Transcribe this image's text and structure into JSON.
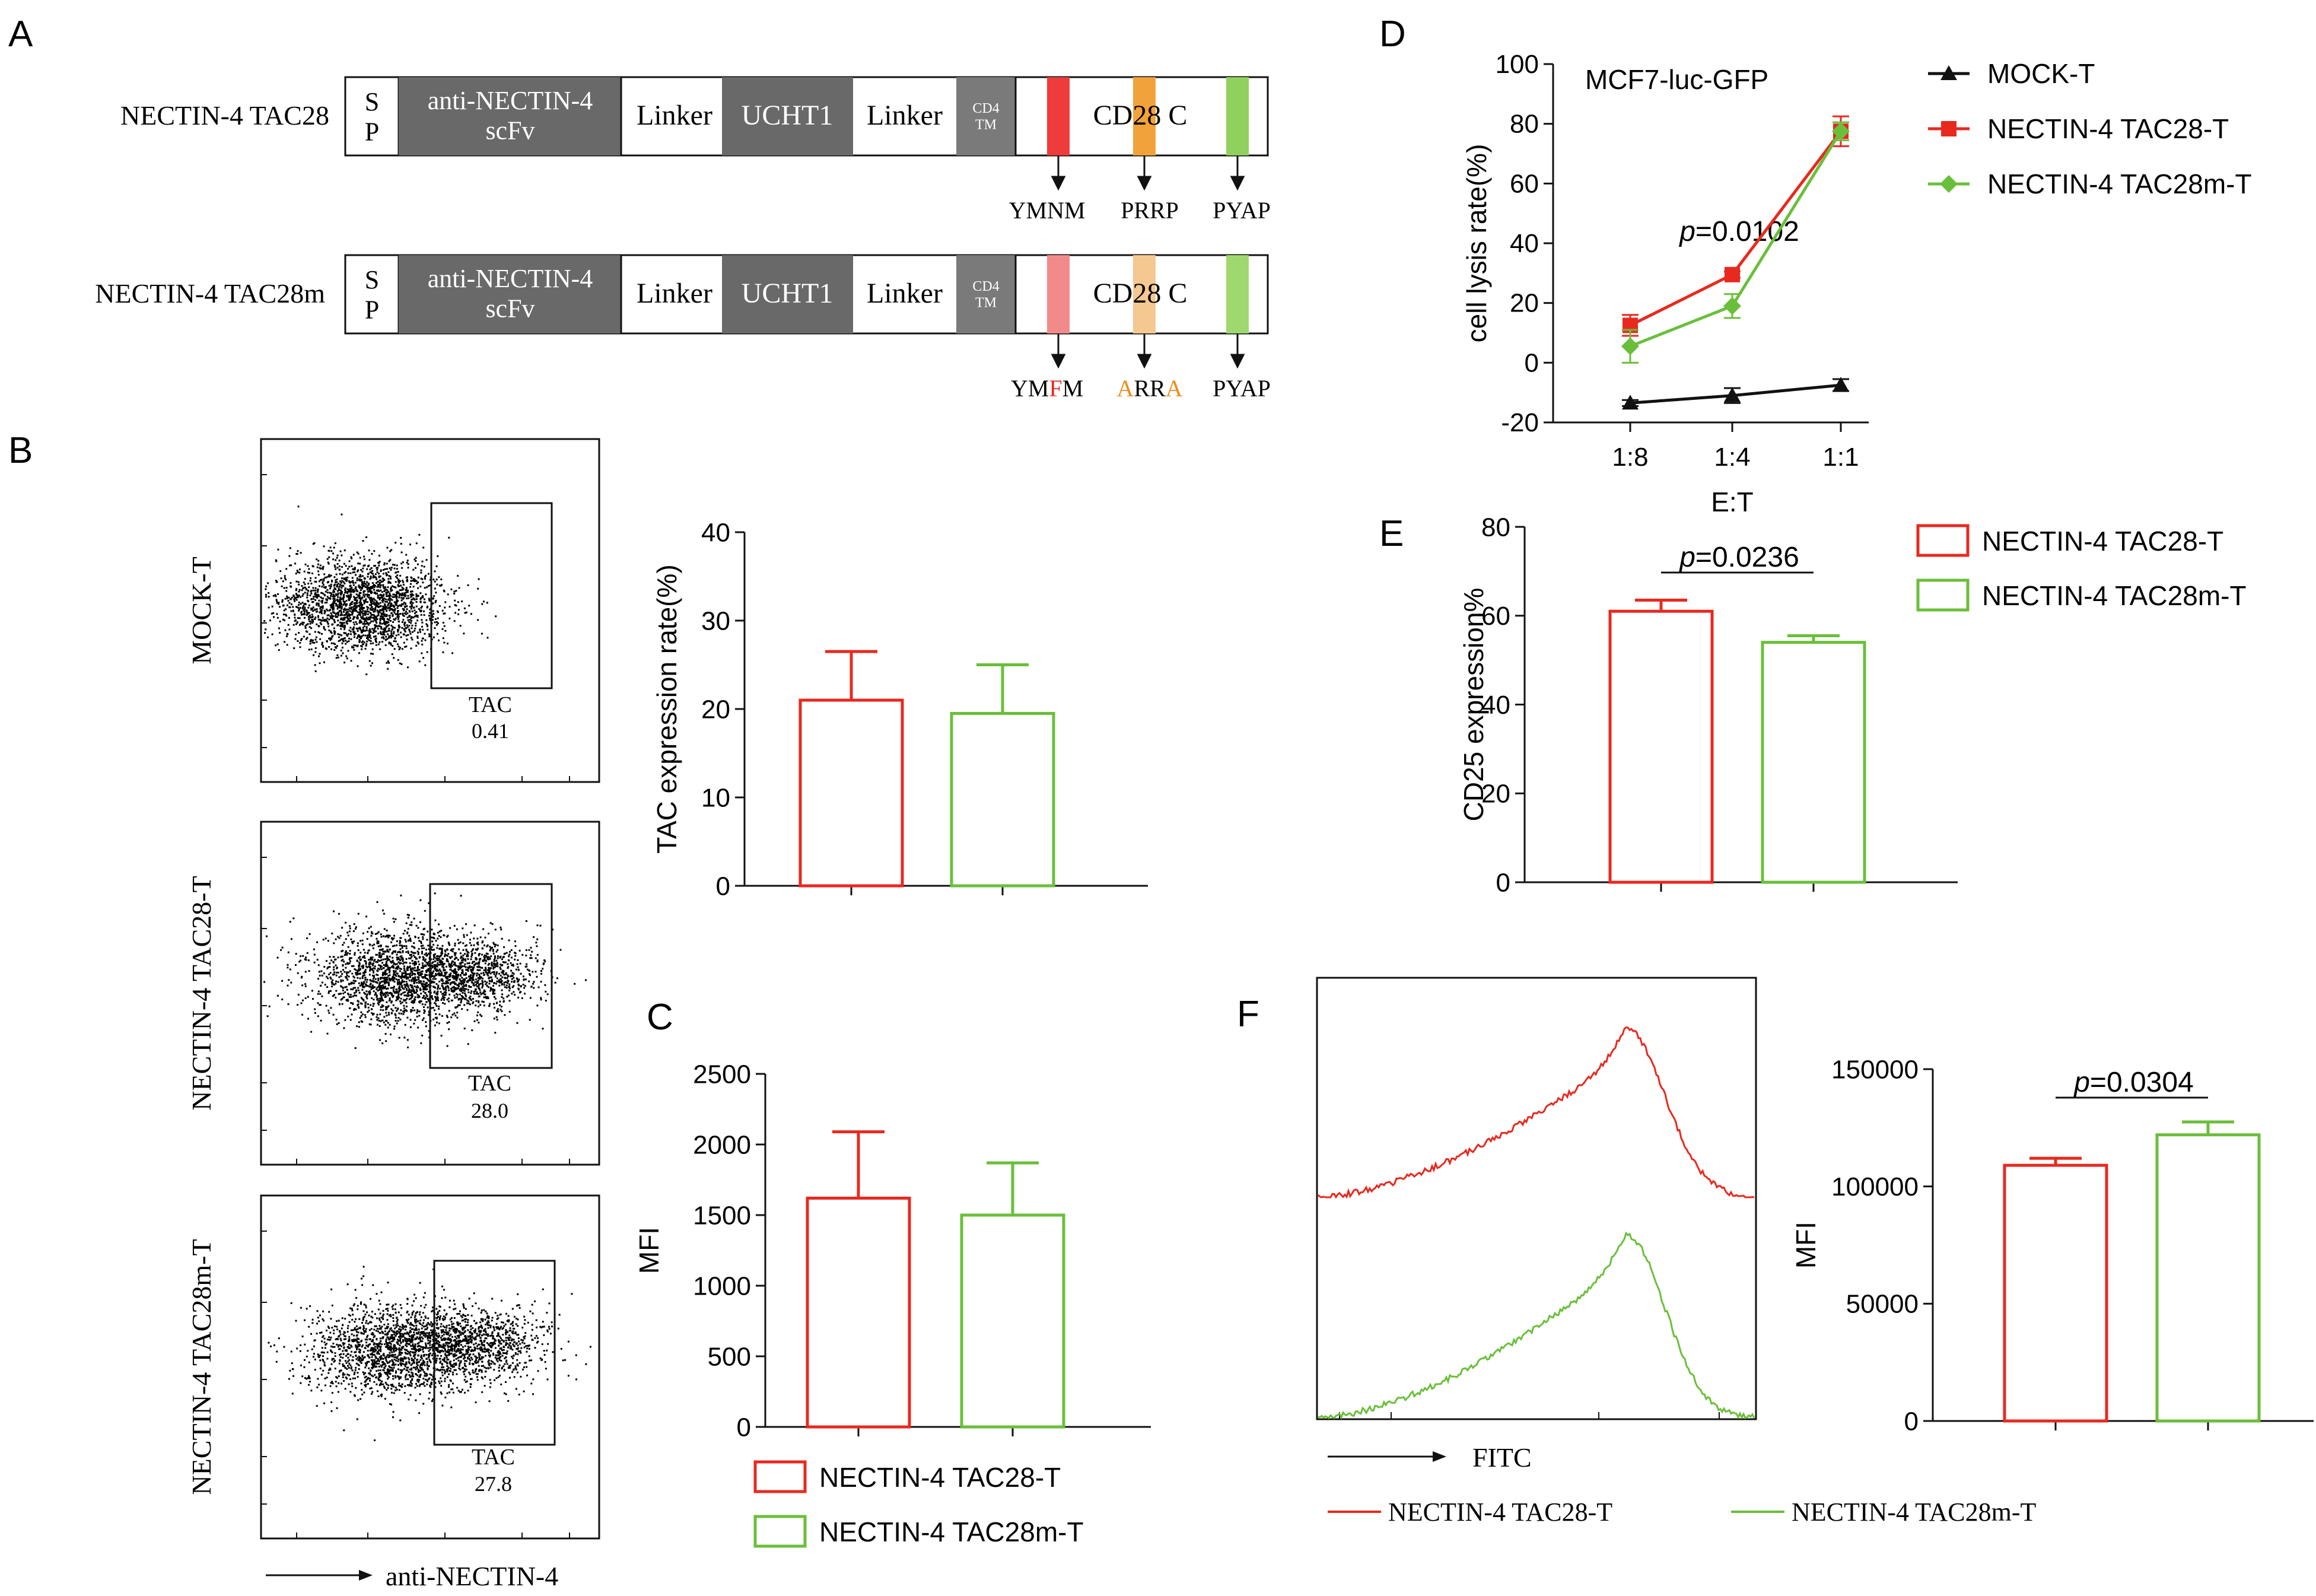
{
  "colors": {
    "red": "#e8291f",
    "green": "#6abf3a",
    "black": "#111111",
    "dark_box": "#696969",
    "tm_box": "#7a7a7a",
    "ymnm": "#ee3b3b",
    "prrp": "#f2a23a",
    "pyap": "#8fd15c",
    "ymfm": "#f28a8a",
    "arra": "#f5c891",
    "pyap_m": "#9fd86e",
    "mut_red": "#e8291f",
    "mut_orange": "#ef8b1c"
  },
  "panel_labels": {
    "a": "A",
    "b": "B",
    "c": "C",
    "d": "D",
    "e": "E",
    "f": "F"
  },
  "construct": {
    "rows": [
      {
        "name": "NECTIN-4 TAC28",
        "sp": "S\nP",
        "scfv": "anti-NECTIN-4\nscFv",
        "linker1": "Linker",
        "ucht1": "UCHT1",
        "linker2": "Linker",
        "tm": "CD4\nTM",
        "cd28": "CD28 C",
        "motif1": "YMNM",
        "motif2": "PRRP",
        "motif3": "PYAP"
      },
      {
        "name": "NECTIN-4 TAC28m",
        "sp": "S\nP",
        "scfv": "anti-NECTIN-4\nscFv",
        "linker1": "Linker",
        "ucht1": "UCHT1",
        "linker2": "Linker",
        "tm": "CD4\nTM",
        "cd28": "CD28 C",
        "motif1_parts": [
          "YM",
          "F",
          "M"
        ],
        "motif2_parts": [
          "A",
          "RR",
          "A"
        ],
        "motif3": "PYAP"
      }
    ]
  },
  "flow_b": {
    "samples": [
      {
        "name": "MOCK-T",
        "gate": "TAC",
        "value": "0.41"
      },
      {
        "name": "NECTIN-4 TAC28-T",
        "gate": "TAC",
        "value": "28.0"
      },
      {
        "name": "NECTIN-4 TAC28m-T",
        "gate": "TAC",
        "value": "27.8"
      }
    ],
    "xlabel": "anti-NECTIN-4"
  },
  "histogram_f": {
    "xlabel": "FITC",
    "legend": [
      {
        "name": "NECTIN-4 TAC28-T",
        "color": "#e8291f"
      },
      {
        "name": "NECTIN-4 TAC28m-T",
        "color": "#6abf3a"
      }
    ]
  },
  "chart_data": [
    {
      "id": "B",
      "type": "bar",
      "categories": [
        "NECTIN-4 TAC28-T",
        "NECTIN-4 TAC28m-T"
      ],
      "values": [
        21,
        19.5
      ],
      "errors": [
        5.5,
        5.5
      ],
      "ylabel": "TAC expression rate(%)",
      "ylim": [
        0,
        40
      ],
      "yticks": [
        0,
        10,
        20,
        30,
        40
      ],
      "colors": [
        "#e8291f",
        "#6abf3a"
      ]
    },
    {
      "id": "C",
      "type": "bar",
      "categories": [
        "NECTIN-4 TAC28-T",
        "NECTIN-4 TAC28m-T"
      ],
      "values": [
        1620,
        1500
      ],
      "errors": [
        470,
        370
      ],
      "ylabel": "MFI",
      "ylim": [
        0,
        2500
      ],
      "yticks": [
        0,
        500,
        1000,
        1500,
        2000,
        2500
      ],
      "legend": [
        "NECTIN-4 TAC28-T",
        "NECTIN-4 TAC28m-T"
      ],
      "colors": [
        "#e8291f",
        "#6abf3a"
      ]
    },
    {
      "id": "D",
      "type": "line",
      "title": "MCF7-luc-GFP",
      "categories": [
        "1:8",
        "1:4",
        "1:1"
      ],
      "xlabel": "E:T",
      "ylabel": "cell lysis rate(%)",
      "ylim": [
        -20,
        100
      ],
      "yticks": [
        -20,
        0,
        20,
        40,
        60,
        80,
        100
      ],
      "annotation": {
        "p": "p",
        "value": "=0.0102"
      },
      "series": [
        {
          "name": "MOCK-T",
          "values": [
            -13.5,
            -11,
            -7.5
          ],
          "errors": [
            1,
            2.5,
            2
          ],
          "color": "#111111",
          "marker": "triangle"
        },
        {
          "name": "NECTIN-4 TAC28-T",
          "values": [
            12.5,
            29.5,
            77.5
          ],
          "errors": [
            3.5,
            1,
            5
          ],
          "color": "#e8291f",
          "marker": "square"
        },
        {
          "name": "NECTIN-4 TAC28m-T",
          "values": [
            5.5,
            19,
            77.5
          ],
          "errors": [
            5.5,
            4,
            3
          ],
          "color": "#6abf3a",
          "marker": "diamond"
        }
      ]
    },
    {
      "id": "E",
      "type": "bar",
      "categories": [
        "NECTIN-4 TAC28-T",
        "NECTIN-4 TAC28m-T"
      ],
      "values": [
        61,
        54
      ],
      "errors": [
        2.5,
        1.5
      ],
      "ylabel": "CD25 expression%",
      "ylim": [
        0,
        80
      ],
      "yticks": [
        0,
        20,
        40,
        60,
        80
      ],
      "annotation": {
        "p": "p",
        "value": "=0.0236"
      },
      "legend": [
        "NECTIN-4 TAC28-T",
        "NECTIN-4 TAC28m-T"
      ],
      "colors": [
        "#e8291f",
        "#6abf3a"
      ]
    },
    {
      "id": "F",
      "type": "bar",
      "categories": [
        "NECTIN-4 TAC28-T",
        "NECTIN-4 TAC28m-T"
      ],
      "values": [
        109000,
        122000
      ],
      "errors": [
        3000,
        5500
      ],
      "ylabel": "MFI",
      "ylim": [
        0,
        150000
      ],
      "yticks": [
        0,
        50000,
        100000,
        150000
      ],
      "annotation": {
        "p": "p",
        "value": "=0.0304"
      },
      "colors": [
        "#e8291f",
        "#6abf3a"
      ]
    }
  ]
}
